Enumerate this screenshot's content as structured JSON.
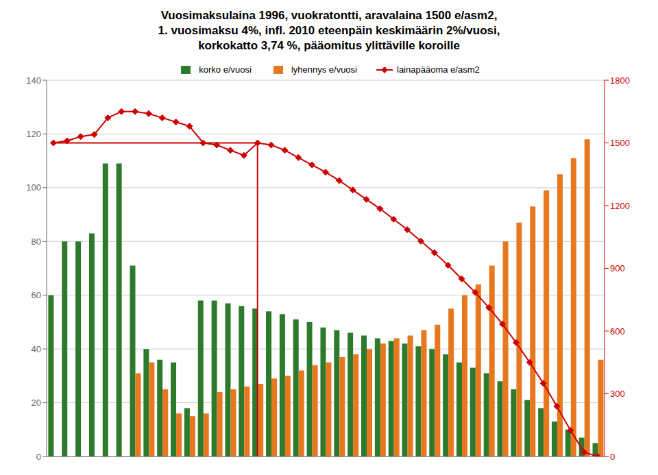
{
  "chart_data": {
    "type": "bar",
    "title": "Vuosimaksulaina 1996, vuokratontti, aravalaina 1500 e/asm2,\n1. vuosimaksu 4%, infl. 2010 eteenpäin keskimäärin 2%/vuosi,\nkorkokatto 3,74 %, pääomitus ylittäville koroille",
    "categories": [
      null,
      null,
      null,
      null,
      null,
      null,
      null,
      null,
      null,
      null,
      null,
      null,
      null,
      null,
      null,
      null,
      null,
      null,
      null,
      null,
      null,
      null,
      null,
      null,
      null,
      null,
      null,
      null,
      null,
      null,
      null,
      null,
      null,
      null,
      null,
      null,
      null,
      null,
      null,
      null,
      null
    ],
    "series": [
      {
        "name": "korko e/vuosi",
        "type": "bar",
        "color": "#2d7a2d",
        "values": [
          60,
          80,
          80,
          83,
          109,
          109,
          71,
          40,
          36,
          35,
          18,
          58,
          58,
          57,
          56,
          55,
          54,
          53,
          51,
          50,
          48,
          47,
          46,
          45,
          44,
          43,
          42,
          41,
          40,
          38,
          35,
          33,
          31,
          28,
          25,
          21,
          18,
          13,
          10,
          7,
          5
        ]
      },
      {
        "name": "lyhennys e/vuosi",
        "type": "bar",
        "color": "#e87820",
        "values": [
          0,
          0,
          0,
          0,
          0,
          0,
          31,
          35,
          25,
          16,
          15,
          16,
          24,
          25,
          26,
          27,
          29,
          30,
          32,
          34,
          35,
          37,
          38,
          40,
          42,
          44,
          45,
          47,
          49,
          55,
          60,
          64,
          71,
          80,
          87,
          93,
          99,
          105,
          111,
          118,
          36
        ]
      },
      {
        "name": "lainapääoma e/asm2",
        "type": "line",
        "color": "#cc0000",
        "marker": "diamond",
        "axis": "y2",
        "values": [
          1500,
          1510,
          1530,
          1540,
          1620,
          1650,
          1650,
          1640,
          1620,
          1600,
          1580,
          1500,
          1490,
          1465,
          1440,
          1500,
          1490,
          1465,
          1430,
          1395,
          1360,
          1320,
          1275,
          1230,
          1185,
          1135,
          1085,
          1030,
          975,
          915,
          850,
          785,
          712,
          633,
          545,
          450,
          350,
          240,
          125,
          20,
          0
        ]
      },
      {
        "type": "line",
        "color": "#cc0000",
        "marker": "none",
        "axis": "y2",
        "values": [
          1500,
          1500,
          1500,
          1500,
          1500,
          1500,
          1500,
          1500,
          1500,
          1500,
          1500,
          1500,
          1500,
          1500,
          1500,
          1500,
          null,
          null,
          null,
          null,
          null,
          null,
          null,
          null,
          null,
          null,
          null,
          null,
          null,
          null,
          null,
          null,
          null,
          null,
          null,
          null,
          null,
          null,
          null,
          null,
          null
        ]
      }
    ],
    "ylim": [
      0,
      140
    ],
    "yticks": [
      0,
      20,
      40,
      60,
      80,
      100,
      120,
      140
    ],
    "y2lim": [
      0,
      1800
    ],
    "y2ticks": [
      0,
      300,
      600,
      900,
      1200,
      1500,
      1800
    ],
    "grid": true,
    "legend": "top",
    "tick_labels": "y"
  }
}
